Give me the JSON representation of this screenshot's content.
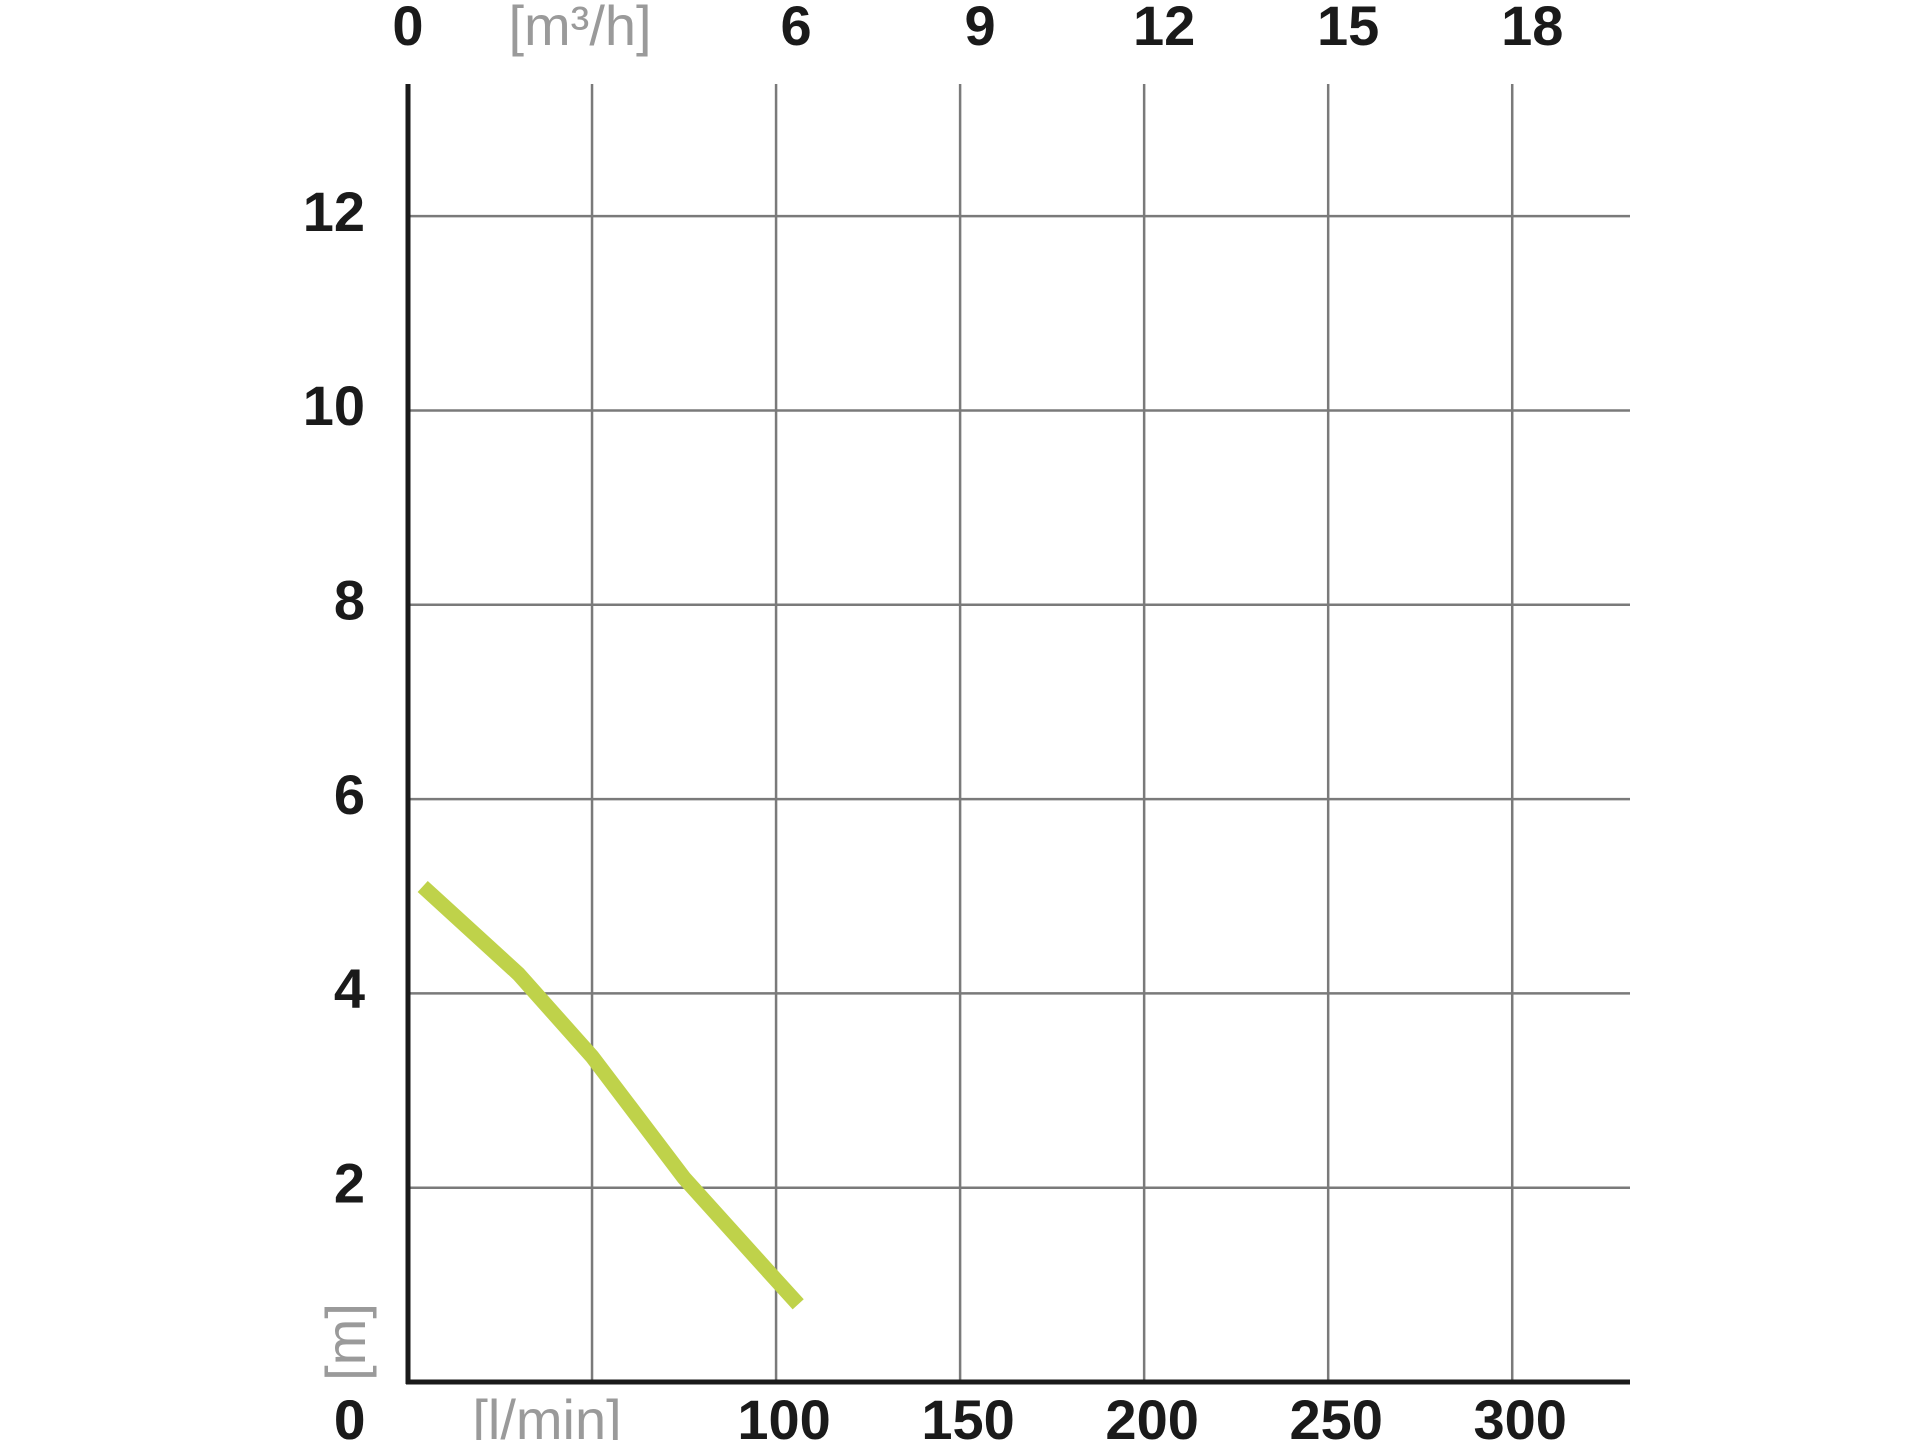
{
  "chart_data": {
    "type": "line",
    "x": [
      4,
      30,
      50,
      75,
      100,
      106
    ],
    "values": [
      5.1,
      4.2,
      3.35,
      2.1,
      1.05,
      0.8
    ],
    "color": "#bfd24a",
    "xlim": [
      0,
      332
    ],
    "xticks": [
      0,
      {
        "value": 50,
        "label": "[l/min]"
      },
      100,
      150,
      200,
      250,
      300
    ],
    "x2lim": [
      0,
      19.92
    ],
    "x2ticks": [
      0,
      {
        "value": 3,
        "label": "[m³/h]"
      },
      6,
      9,
      12,
      15,
      18
    ],
    "ylim": [
      0,
      13.36
    ],
    "yticks": [
      0,
      2,
      4,
      6,
      8,
      10,
      12
    ],
    "y_label": "[m]",
    "grid": true
  }
}
